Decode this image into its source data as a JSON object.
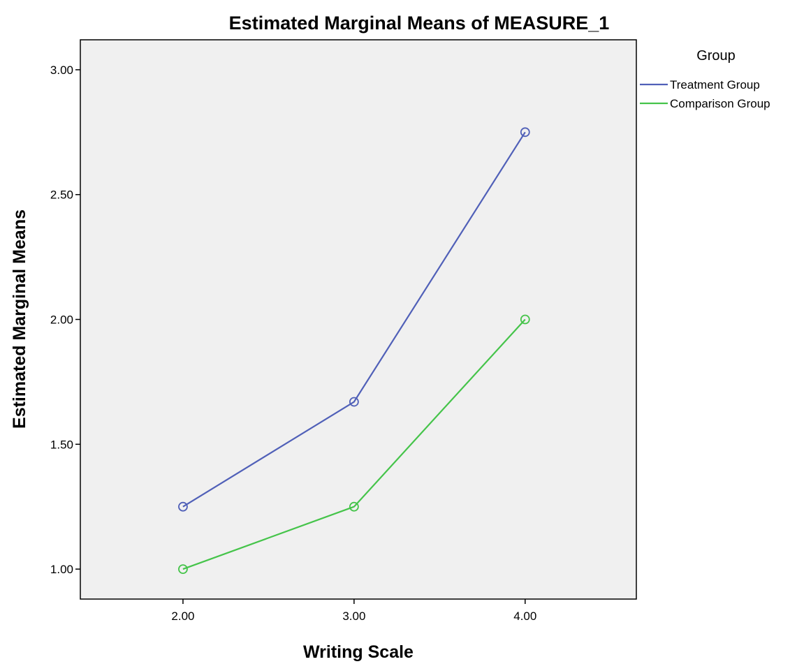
{
  "chart_data": {
    "type": "line",
    "title": "Estimated Marginal Means of MEASURE_1",
    "xlabel": "Writing Scale",
    "ylabel": "Estimated Marginal Means",
    "categories": [
      "2.00",
      "3.00",
      "4.00"
    ],
    "x": [
      2,
      3,
      4
    ],
    "xlim": [
      1.4,
      4.65
    ],
    "ylim": [
      0.88,
      3.12
    ],
    "yticks": [
      1.0,
      1.5,
      2.0,
      2.5,
      3.0
    ],
    "ytick_labels": [
      "1.00",
      "1.50",
      "2.00",
      "2.50",
      "3.00"
    ],
    "grid": false,
    "legend": {
      "title": "Group",
      "placement": "right-top"
    },
    "series": [
      {
        "name": "Treatment Group",
        "color": "#5060b8",
        "values": [
          1.25,
          1.67,
          2.75
        ]
      },
      {
        "name": "Comparison Group",
        "color": "#45c44a",
        "values": [
          1.0,
          1.25,
          2.0
        ]
      }
    ],
    "colors": {
      "plot_background": "#f0f0f0",
      "frame": "#000000"
    }
  }
}
